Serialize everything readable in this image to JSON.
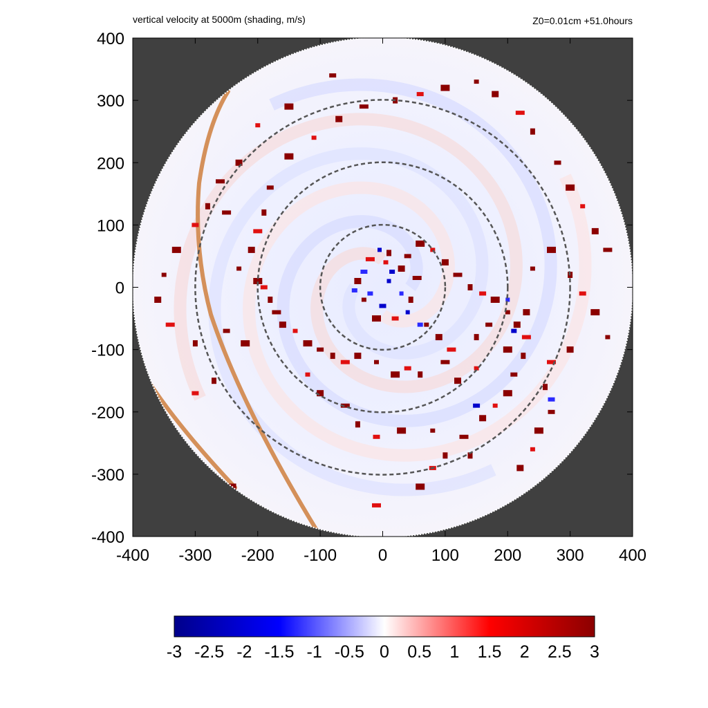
{
  "chart_data": {
    "type": "heatmap",
    "title": "vertical velocity at 5000m (shading, m/s)",
    "subtitle": "Z0=0.01cm  +51.0hours",
    "xlim": [
      -400,
      400
    ],
    "ylim": [
      -400,
      400
    ],
    "x_ticks": [
      -400,
      -300,
      -200,
      -100,
      0,
      100,
      200,
      300,
      400
    ],
    "y_ticks": [
      -400,
      -300,
      -200,
      -100,
      0,
      100,
      200,
      300,
      400
    ],
    "x_tick_labels": [
      "-400",
      "-300",
      "-200",
      "-100",
      "0",
      "100",
      "200",
      "300",
      "400"
    ],
    "y_tick_labels": [
      "400",
      "300",
      "200",
      "100",
      "0",
      "-100",
      "-200",
      "-300",
      "-400"
    ],
    "domain_radius": 400,
    "range_rings": [
      100,
      200,
      300
    ],
    "colorbar": {
      "min": -3,
      "max": 3,
      "ticks": [
        -3,
        -2.5,
        -2,
        -1.5,
        -1,
        -0.5,
        0,
        0.5,
        1,
        1.5,
        2,
        2.5,
        3
      ],
      "tick_labels": [
        "-3",
        "-2.5",
        "-2",
        "-1.5",
        "-1",
        "-0.5",
        "0",
        "0.5",
        "1",
        "1.5",
        "2",
        "2.5",
        "3"
      ],
      "colors": [
        "#00008b",
        "#0000ff",
        "#ffffff",
        "#ff0000",
        "#8b0000"
      ]
    },
    "background_color": "#404040",
    "coastline_color": "#d4905a",
    "updraft_cells": [
      [
        5,
        40
      ],
      [
        30,
        30
      ],
      [
        55,
        15
      ],
      [
        45,
        -20
      ],
      [
        20,
        -50
      ],
      [
        -10,
        -50
      ],
      [
        -30,
        -20
      ],
      [
        -40,
        10
      ],
      [
        -20,
        45
      ],
      [
        10,
        55
      ],
      [
        40,
        50
      ],
      [
        60,
        70
      ],
      [
        80,
        60
      ],
      [
        100,
        40
      ],
      [
        120,
        20
      ],
      [
        140,
        0
      ],
      [
        160,
        -10
      ],
      [
        180,
        -20
      ],
      [
        200,
        -40
      ],
      [
        215,
        -60
      ],
      [
        230,
        -80
      ],
      [
        225,
        -110
      ],
      [
        210,
        -140
      ],
      [
        200,
        -170
      ],
      [
        180,
        -190
      ],
      [
        160,
        -210
      ],
      [
        130,
        -240
      ],
      [
        100,
        -270
      ],
      [
        80,
        -290
      ],
      [
        60,
        -320
      ],
      [
        70,
        -60
      ],
      [
        90,
        -80
      ],
      [
        110,
        -100
      ],
      [
        150,
        -80
      ],
      [
        170,
        -60
      ],
      [
        200,
        -100
      ],
      [
        150,
        -130
      ],
      [
        120,
        -150
      ],
      [
        100,
        -120
      ],
      [
        60,
        -140
      ],
      [
        40,
        -130
      ],
      [
        20,
        -140
      ],
      [
        -10,
        -120
      ],
      [
        -40,
        -110
      ],
      [
        -60,
        -120
      ],
      [
        -80,
        -110
      ],
      [
        -100,
        -100
      ],
      [
        -120,
        -90
      ],
      [
        -140,
        -70
      ],
      [
        -160,
        -60
      ],
      [
        -170,
        -40
      ],
      [
        -180,
        -20
      ],
      [
        -190,
        0
      ],
      [
        -200,
        10
      ],
      [
        -230,
        30
      ],
      [
        -210,
        60
      ],
      [
        -200,
        90
      ],
      [
        -190,
        120
      ],
      [
        -180,
        160
      ],
      [
        -150,
        210
      ],
      [
        -110,
        240
      ],
      [
        -70,
        270
      ],
      [
        -30,
        290
      ],
      [
        20,
        300
      ],
      [
        60,
        310
      ],
      [
        100,
        320
      ],
      [
        150,
        330
      ],
      [
        180,
        310
      ],
      [
        220,
        280
      ],
      [
        240,
        250
      ],
      [
        280,
        200
      ],
      [
        300,
        160
      ],
      [
        320,
        130
      ],
      [
        340,
        90
      ],
      [
        360,
        60
      ],
      [
        300,
        20
      ],
      [
        320,
        -10
      ],
      [
        340,
        -40
      ],
      [
        360,
        -80
      ],
      [
        300,
        -100
      ],
      [
        270,
        -120
      ],
      [
        260,
        -160
      ],
      [
        270,
        -200
      ],
      [
        250,
        -230
      ],
      [
        240,
        -260
      ],
      [
        220,
        -290
      ],
      [
        -250,
        120
      ],
      [
        -280,
        130
      ],
      [
        -300,
        100
      ],
      [
        -330,
        60
      ],
      [
        -350,
        20
      ],
      [
        -360,
        -20
      ],
      [
        -340,
        -60
      ],
      [
        -300,
        -90
      ],
      [
        -250,
        -70
      ],
      [
        -220,
        -90
      ],
      [
        -120,
        -140
      ],
      [
        -100,
        -170
      ],
      [
        -60,
        -190
      ],
      [
        -40,
        -220
      ],
      [
        -10,
        -240
      ],
      [
        30,
        -230
      ],
      [
        80,
        -230
      ],
      [
        -240,
        -320
      ],
      [
        -10,
        -350
      ],
      [
        140,
        -270
      ],
      [
        -80,
        340
      ],
      [
        -150,
        290
      ],
      [
        -200,
        260
      ],
      [
        -230,
        200
      ],
      [
        -260,
        170
      ],
      [
        -270,
        -150
      ],
      [
        -300,
        -170
      ],
      [
        270,
        60
      ],
      [
        240,
        30
      ],
      [
        230,
        -40
      ]
    ],
    "downdraft_cells": [
      [
        10,
        10
      ],
      [
        -20,
        -10
      ],
      [
        0,
        -30
      ],
      [
        30,
        -10
      ],
      [
        15,
        25
      ],
      [
        -30,
        25
      ],
      [
        40,
        -40
      ],
      [
        -45,
        -5
      ],
      [
        150,
        -190
      ],
      [
        200,
        -20
      ],
      [
        210,
        -70
      ],
      [
        270,
        -180
      ],
      [
        -5,
        60
      ],
      [
        60,
        -60
      ]
    ]
  }
}
